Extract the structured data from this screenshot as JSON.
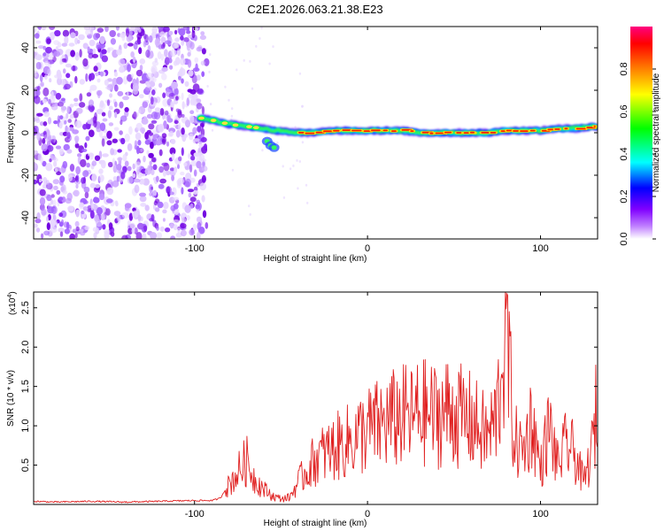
{
  "title": "C2E1.2026.063.21.38.E23",
  "chart_data": [
    {
      "type": "heatmap",
      "xlabel": "Height of straight line (km)",
      "ylabel": "Frequency (Hz)",
      "xlim": [
        -193,
        133
      ],
      "ylim": [
        -50,
        50
      ],
      "xticks": [
        -100,
        0,
        100
      ],
      "xtick_labels": [
        "-100",
        "0",
        "100"
      ],
      "yticks": [
        -40,
        -20,
        0,
        20,
        40
      ],
      "ytick_labels": [
        "-40",
        "-20",
        "0",
        "20",
        "40"
      ],
      "colorbar": {
        "label": "Normalized spectral amplitude",
        "range": [
          0,
          1
        ],
        "ticks": [
          0.0,
          0.2,
          0.4,
          0.6,
          0.8
        ],
        "tick_labels": [
          "0.0",
          "0.2",
          "0.4",
          "0.6",
          "0.8"
        ],
        "colormap": [
          "#ffffff",
          "#c080ff",
          "#8000ff",
          "#0000ff",
          "#00ffff",
          "#00ff00",
          "#ffff00",
          "#ff8000",
          "#ff0000",
          "#ff0080"
        ]
      },
      "noise_region": {
        "x_from": -193,
        "x_to": -93,
        "freq_from": -50,
        "freq_to": 50
      },
      "signal_track": {
        "x": [
          -97,
          -90,
          -80,
          -70,
          -60,
          -55,
          -50,
          -40,
          -30,
          -20,
          -10,
          0,
          10,
          20,
          30,
          40,
          50,
          60,
          70,
          80,
          90,
          100,
          110,
          120,
          133
        ],
        "frequency": [
          7,
          6,
          4,
          3,
          2,
          1,
          1,
          0,
          0,
          1,
          1,
          1,
          1,
          1,
          0,
          0,
          0,
          0,
          0,
          1,
          1,
          1,
          2,
          2,
          3
        ]
      },
      "secondary_blob": {
        "x": [
          -58,
          -56,
          -54
        ],
        "frequency": [
          -4,
          -6,
          -7
        ]
      }
    },
    {
      "type": "line",
      "xlabel": "Height of straight line (km)",
      "ylabel": "SNR (10 * v/v)",
      "y_multiplier": "(x10",
      "y_multiplier_exp": "4",
      "y_multiplier_close": ")",
      "xlim": [
        -193,
        133
      ],
      "ylim": [
        0,
        2.7
      ],
      "xticks": [
        -100,
        0,
        100
      ],
      "xtick_labels": [
        "-100",
        "0",
        "100"
      ],
      "yticks": [
        0.5,
        1.0,
        1.5,
        2.0,
        2.5
      ],
      "ytick_labels": [
        "0.5",
        "1.0",
        "1.5",
        "2.0",
        "2.5"
      ],
      "series": [
        {
          "name": "SNR",
          "color": "#e02020",
          "x": [
            -193,
            -180,
            -160,
            -140,
            -120,
            -100,
            -90,
            -85,
            -80,
            -75,
            -70,
            -65,
            -60,
            -55,
            -50,
            -45,
            -40,
            -35,
            -30,
            -25,
            -20,
            -15,
            -10,
            -5,
            0,
            5,
            10,
            15,
            20,
            25,
            30,
            35,
            40,
            45,
            50,
            55,
            60,
            65,
            70,
            75,
            78,
            80,
            82,
            85,
            90,
            95,
            100,
            105,
            110,
            115,
            120,
            125,
            130,
            133
          ],
          "y": [
            0.04,
            0.03,
            0.04,
            0.03,
            0.04,
            0.05,
            0.05,
            0.08,
            0.28,
            0.45,
            0.62,
            0.35,
            0.22,
            0.12,
            0.08,
            0.1,
            0.32,
            0.48,
            0.65,
            0.72,
            0.78,
            0.85,
            0.9,
            0.98,
            1.05,
            1.1,
            1.15,
            1.2,
            1.25,
            1.22,
            1.3,
            1.28,
            1.25,
            1.32,
            1.3,
            1.22,
            1.18,
            1.05,
            0.95,
            1.3,
            2.1,
            2.7,
            1.8,
            0.9,
            0.75,
            1.2,
            0.5,
            1.1,
            0.55,
            0.85,
            0.7,
            0.3,
            0.8,
            1.5
          ]
        }
      ]
    }
  ]
}
